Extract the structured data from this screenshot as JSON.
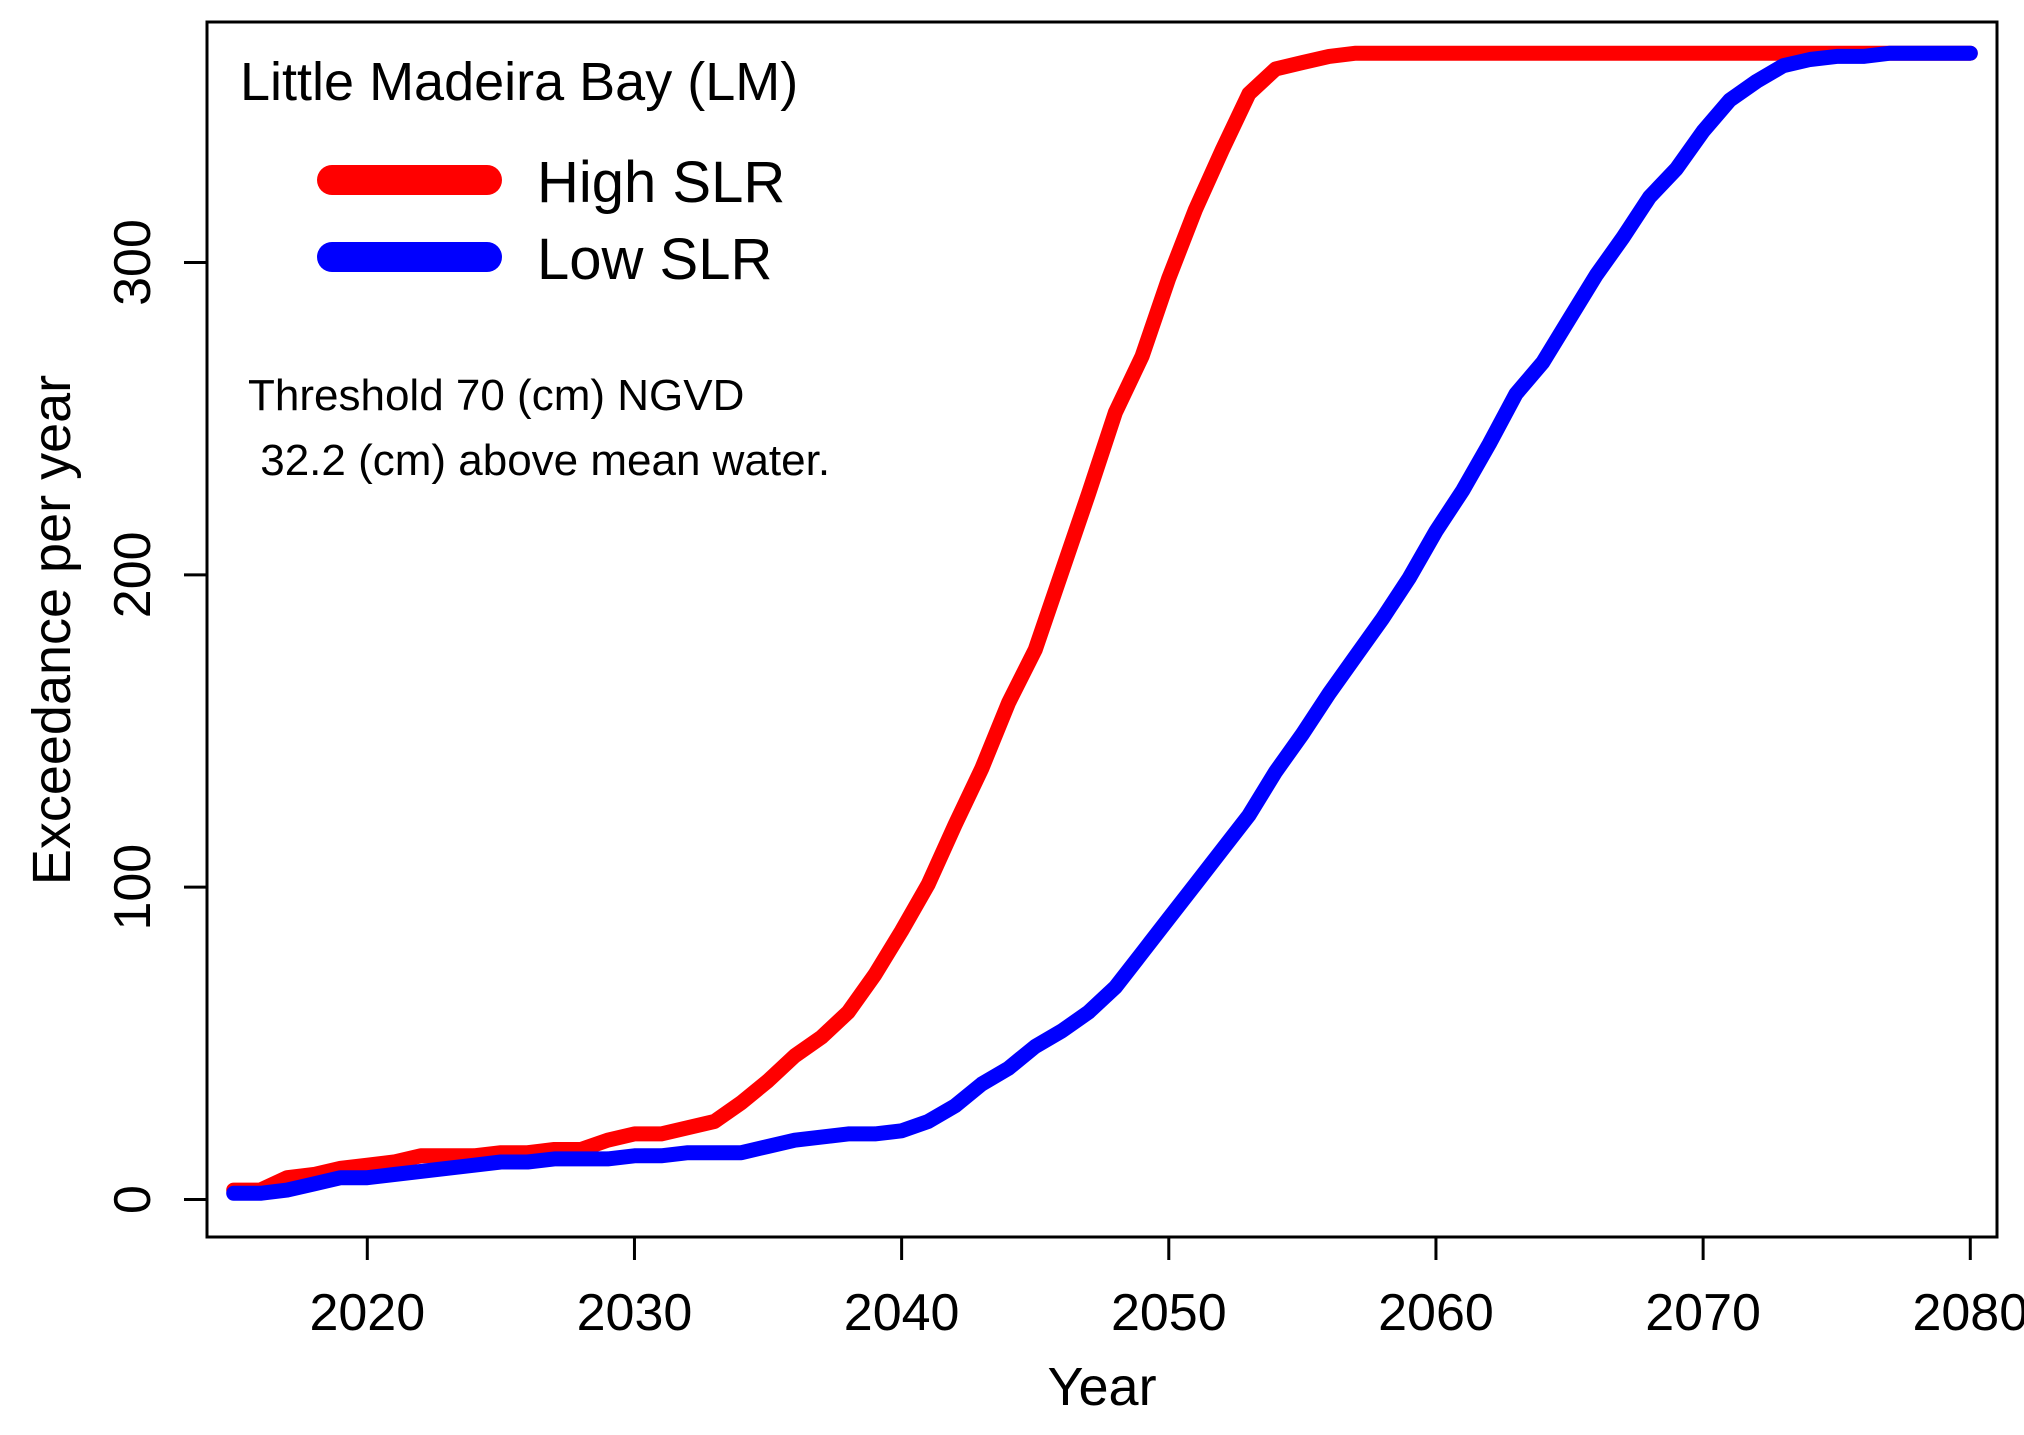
{
  "chart_data": {
    "type": "line",
    "title": "Little Madeira Bay (LM)",
    "xlabel": "Year",
    "ylabel": "Exceedance per year",
    "xlim": [
      2014,
      2081
    ],
    "ylim": [
      -12,
      377
    ],
    "xticks": [
      2020,
      2030,
      2040,
      2050,
      2060,
      2070,
      2080
    ],
    "xtick_labels": [
      "2020",
      "2030",
      "2040",
      "2050",
      "2060",
      "2070",
      "2080"
    ],
    "yticks": [
      0,
      100,
      200,
      300
    ],
    "ytick_labels": [
      "0",
      "100",
      "200",
      "300"
    ],
    "grid": false,
    "legend_position": "top-left",
    "annotation": [
      "Threshold 70 (cm) NGVD",
      " 32.2 (cm) above mean water."
    ],
    "x": [
      2015,
      2016,
      2017,
      2018,
      2019,
      2020,
      2021,
      2022,
      2023,
      2024,
      2025,
      2026,
      2027,
      2028,
      2029,
      2030,
      2031,
      2032,
      2033,
      2034,
      2035,
      2036,
      2037,
      2038,
      2039,
      2040,
      2041,
      2042,
      2043,
      2044,
      2045,
      2046,
      2047,
      2048,
      2049,
      2050,
      2051,
      2052,
      2053,
      2054,
      2055,
      2056,
      2057,
      2058,
      2059,
      2060,
      2061,
      2062,
      2063,
      2064,
      2065,
      2066,
      2067,
      2068,
      2069,
      2070,
      2071,
      2072,
      2073,
      2074,
      2075,
      2076,
      2077,
      2078,
      2079,
      2080
    ],
    "series": [
      {
        "name": "High SLR",
        "color": "#ff0000",
        "values": [
          3,
          3,
          7,
          8,
          10,
          11,
          12,
          14,
          14,
          14,
          15,
          15,
          16,
          16,
          19,
          21,
          21,
          23,
          25,
          31,
          38,
          46,
          52,
          60,
          72,
          86,
          101,
          120,
          138,
          159,
          176,
          201,
          226,
          252,
          270,
          295,
          317,
          336,
          354,
          362,
          364,
          366,
          367,
          367,
          367,
          367,
          367,
          367,
          367,
          367,
          367,
          367,
          367,
          367,
          367,
          367,
          367,
          367,
          367,
          367,
          367,
          367,
          367,
          367,
          367,
          367
        ]
      },
      {
        "name": "Low SLR",
        "color": "#0000ff",
        "values": [
          2,
          2,
          3,
          5,
          7,
          7,
          8,
          9,
          10,
          11,
          12,
          12,
          13,
          13,
          13,
          14,
          14,
          15,
          15,
          15,
          17,
          19,
          20,
          21,
          21,
          22,
          25,
          30,
          37,
          42,
          49,
          54,
          60,
          68,
          79,
          90,
          101,
          112,
          123,
          137,
          149,
          162,
          174,
          186,
          199,
          214,
          227,
          242,
          258,
          268,
          282,
          296,
          308,
          321,
          330,
          342,
          352,
          358,
          363,
          365,
          366,
          366,
          367,
          367,
          367,
          367
        ]
      }
    ]
  }
}
